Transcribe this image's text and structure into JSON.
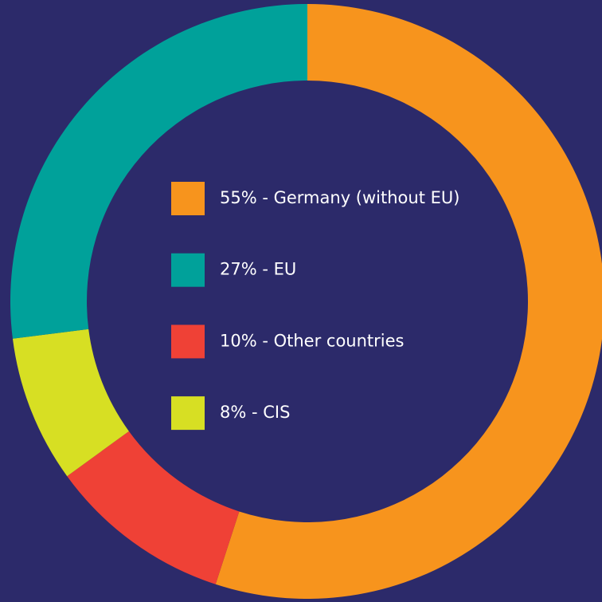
{
  "chart_data": {
    "type": "donut",
    "categories": [
      "55% - Germany (without EU)",
      "27% - EU",
      "10% - Other countries",
      "8% - CIS"
    ],
    "values": [
      55,
      27,
      10,
      8
    ],
    "colors": [
      "#f7941d",
      "#00a19a",
      "#ef4136",
      "#d7df23"
    ],
    "draw_order": [
      0,
      2,
      3,
      1
    ]
  }
}
